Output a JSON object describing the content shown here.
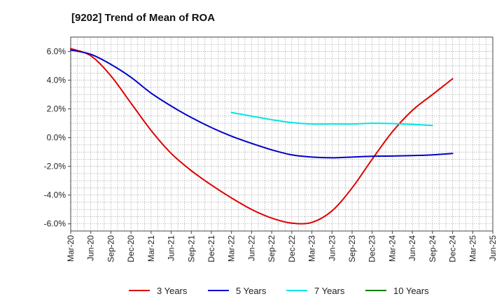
{
  "chart_data": {
    "type": "line",
    "title": "[9202]  Trend of Mean of ROA",
    "xlabel": "",
    "ylabel": "",
    "x_tick_labels": [
      "Mar-20",
      "Jun-20",
      "Sep-20",
      "Dec-20",
      "Mar-21",
      "Jun-21",
      "Sep-21",
      "Dec-21",
      "Mar-22",
      "Jun-22",
      "Sep-22",
      "Dec-22",
      "Mar-23",
      "Jun-23",
      "Sep-23",
      "Dec-23",
      "Mar-24",
      "Jun-24",
      "Sep-24",
      "Dec-24",
      "Mar-25",
      "Jun-25"
    ],
    "y_ticks": [
      -6,
      -4,
      -2,
      0,
      2,
      4,
      6
    ],
    "y_tick_labels": [
      "-6.0%",
      "-4.0%",
      "-2.0%",
      "0.0%",
      "2.0%",
      "4.0%",
      "6.0%"
    ],
    "ylim": [
      -6.5,
      7.0
    ],
    "grid": true,
    "legend_position": "bottom",
    "series": [
      {
        "name": "3 Years",
        "color": "#dd0000",
        "start_index": 0,
        "values": [
          6.2,
          5.7,
          4.3,
          2.4,
          0.5,
          -1.1,
          -2.3,
          -3.3,
          -4.2,
          -5.0,
          -5.6,
          -5.95,
          -5.9,
          -5.1,
          -3.5,
          -1.5,
          0.4,
          1.9,
          3.0,
          4.1
        ]
      },
      {
        "name": "5 Years",
        "color": "#0000cc",
        "start_index": 0,
        "values": [
          6.1,
          5.8,
          5.1,
          4.2,
          3.1,
          2.2,
          1.4,
          0.7,
          0.1,
          -0.4,
          -0.85,
          -1.2,
          -1.35,
          -1.4,
          -1.35,
          -1.3,
          -1.28,
          -1.25,
          -1.2,
          -1.1
        ]
      },
      {
        "name": "7 Years",
        "color": "#00e5e5",
        "start_index": 8,
        "values": [
          1.75,
          1.5,
          1.25,
          1.05,
          0.95,
          0.95,
          0.95,
          1.0,
          0.98,
          0.92,
          0.85
        ]
      },
      {
        "name": "10 Years",
        "color": "#008000",
        "start_index": 0,
        "values": []
      }
    ]
  }
}
